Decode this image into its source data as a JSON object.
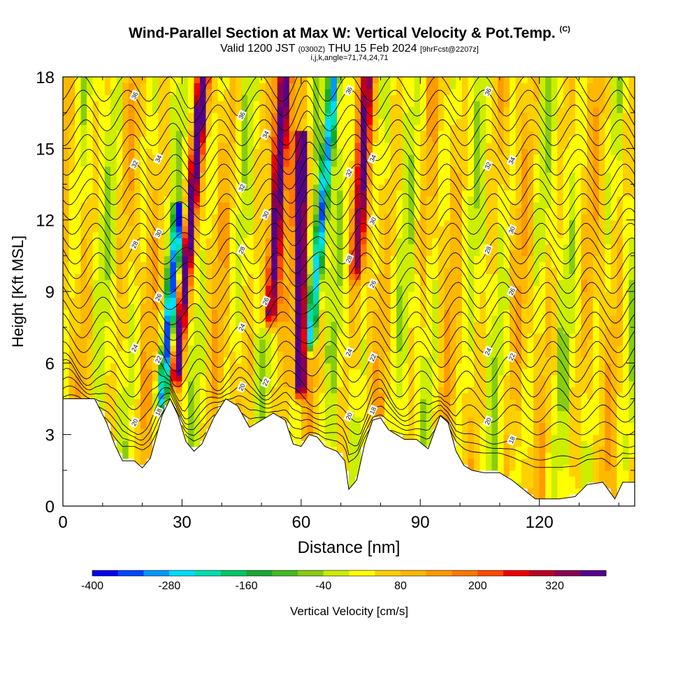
{
  "title": {
    "main": "Wind-Parallel Section at Max W: Vertical Velocity & Pot.Temp.",
    "copyright": "(C)",
    "valid_pre": "Valid 1200 JST",
    "valid_utc": "(0300Z)",
    "valid_date": "THU 15 Feb 2024",
    "forecast": "[9hrFcst@2207z]",
    "params": "i,j,k,angle=71,74,24,71"
  },
  "chart_data": {
    "type": "heatmap",
    "xlabel": "Distance [nm]",
    "ylabel": "Height [Kft MSL]",
    "xlim": [
      0,
      144
    ],
    "ylim": [
      0,
      18
    ],
    "x_ticks": [
      0,
      30,
      60,
      90,
      120
    ],
    "y_ticks": [
      0,
      3,
      6,
      9,
      12,
      15,
      18
    ],
    "colorbar": {
      "label": "Vertical Velocity [cm/s]",
      "min": -400,
      "max": 400,
      "step": 40,
      "tick_labels": [
        "-400",
        "-280",
        "-160",
        "-40",
        "80",
        "200",
        "320"
      ],
      "colors": [
        "#0000ee",
        "#0044ff",
        "#0099ff",
        "#00ddff",
        "#00dfb0",
        "#00c864",
        "#18a830",
        "#44bb22",
        "#88cc11",
        "#ccee00",
        "#ffff00",
        "#ffd000",
        "#ffb800",
        "#ff9a00",
        "#ff7800",
        "#ff4a00",
        "#ee0000",
        "#bb0022",
        "#880055",
        "#55008a"
      ]
    },
    "contour_field": "Potential Temperature",
    "contour_labels": [
      "36",
      "34",
      "32",
      "30",
      "28",
      "26",
      "24",
      "22",
      "20",
      "18"
    ],
    "updraft_cores_x": [
      31,
      53,
      60,
      74
    ],
    "downdraft_cores_x": [
      28,
      64
    ],
    "terrain": [
      {
        "x": 0,
        "h": 4.5
      },
      {
        "x": 5,
        "h": 4.5
      },
      {
        "x": 8,
        "h": 4.5
      },
      {
        "x": 11,
        "h": 3.5
      },
      {
        "x": 13,
        "h": 2.6
      },
      {
        "x": 15,
        "h": 1.9
      },
      {
        "x": 18,
        "h": 1.9
      },
      {
        "x": 20,
        "h": 1.6
      },
      {
        "x": 22,
        "h": 2.0
      },
      {
        "x": 25,
        "h": 3.8
      },
      {
        "x": 27,
        "h": 4.5
      },
      {
        "x": 29,
        "h": 3.8
      },
      {
        "x": 31,
        "h": 2.7
      },
      {
        "x": 33,
        "h": 2.3
      },
      {
        "x": 35,
        "h": 2.6
      },
      {
        "x": 38,
        "h": 3.7
      },
      {
        "x": 41,
        "h": 4.5
      },
      {
        "x": 44,
        "h": 4.2
      },
      {
        "x": 47,
        "h": 3.3
      },
      {
        "x": 50,
        "h": 3.6
      },
      {
        "x": 53,
        "h": 3.9
      },
      {
        "x": 56,
        "h": 3.6
      },
      {
        "x": 58,
        "h": 2.6
      },
      {
        "x": 60,
        "h": 2.5
      },
      {
        "x": 62,
        "h": 3.0
      },
      {
        "x": 64,
        "h": 2.9
      },
      {
        "x": 66,
        "h": 2.5
      },
      {
        "x": 69,
        "h": 2.3
      },
      {
        "x": 71,
        "h": 1.9
      },
      {
        "x": 72,
        "h": 0.7
      },
      {
        "x": 74,
        "h": 1.1
      },
      {
        "x": 76,
        "h": 2.6
      },
      {
        "x": 78,
        "h": 3.6
      },
      {
        "x": 80,
        "h": 3.7
      },
      {
        "x": 82,
        "h": 3.2
      },
      {
        "x": 84,
        "h": 3.0
      },
      {
        "x": 86,
        "h": 2.8
      },
      {
        "x": 89,
        "h": 2.8
      },
      {
        "x": 92,
        "h": 2.4
      },
      {
        "x": 95,
        "h": 3.8
      },
      {
        "x": 97,
        "h": 3.5
      },
      {
        "x": 99,
        "h": 2.3
      },
      {
        "x": 101,
        "h": 1.7
      },
      {
        "x": 103,
        "h": 1.5
      },
      {
        "x": 106,
        "h": 1.4
      },
      {
        "x": 110,
        "h": 1.4
      },
      {
        "x": 113,
        "h": 1.1
      },
      {
        "x": 116,
        "h": 0.7
      },
      {
        "x": 119,
        "h": 0.3
      },
      {
        "x": 125,
        "h": 0.3
      },
      {
        "x": 129,
        "h": 0.4
      },
      {
        "x": 132,
        "h": 0.9
      },
      {
        "x": 136,
        "h": 1.0
      },
      {
        "x": 139,
        "h": 0.3
      },
      {
        "x": 141,
        "h": 1.0
      },
      {
        "x": 144,
        "h": 1.0
      }
    ]
  }
}
